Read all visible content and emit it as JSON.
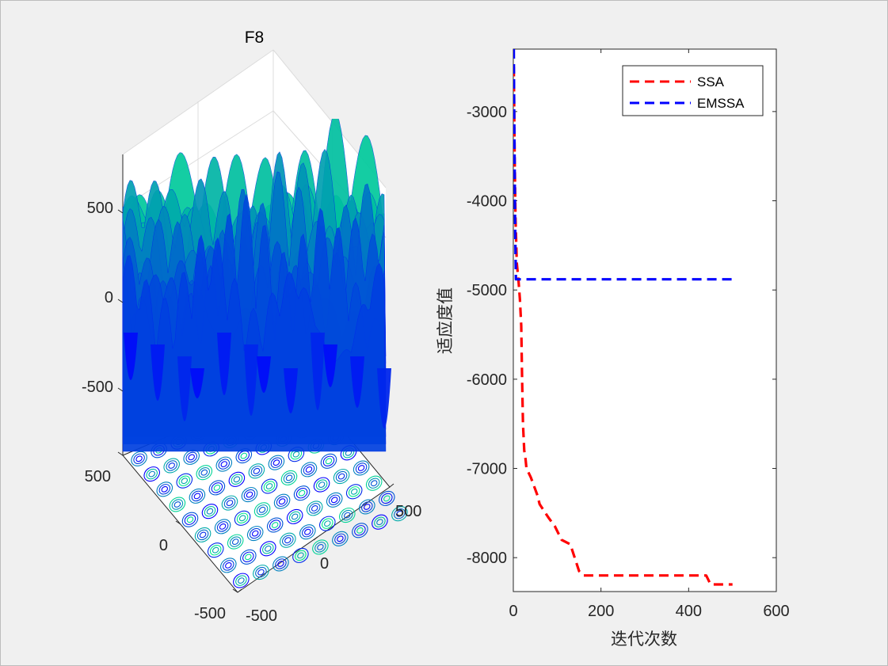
{
  "figure": {
    "background": "#f0f0f0"
  },
  "chart_data": [
    {
      "type": "surface",
      "title": "F8",
      "xlabel": "",
      "ylabel": "",
      "zlabel": "",
      "x_ticks": [
        "-500",
        "0",
        "500"
      ],
      "y_ticks": [
        "-500",
        "0",
        "500"
      ],
      "z_ticks": [
        "500",
        "0",
        "-500"
      ],
      "xlim": [
        -500,
        500
      ],
      "ylim": [
        -500,
        500
      ],
      "zlim": [
        -800,
        800
      ],
      "colormap": "winter",
      "colormap_colors": [
        "#0000ff",
        "#00ff80"
      ],
      "contour_below": true,
      "grid": true
    },
    {
      "type": "line",
      "title": "",
      "xlabel": "迭代次数",
      "ylabel": "适应度值",
      "xlim": [
        0,
        600
      ],
      "ylim": [
        -8380,
        -2300
      ],
      "x_ticks": [
        "0",
        "200",
        "400",
        "600"
      ],
      "y_ticks": [
        "-3000",
        "-4000",
        "-5000",
        "-6000",
        "-7000",
        "-8000"
      ],
      "legend_position": "top-right",
      "series": [
        {
          "name": "SSA",
          "color": "#ff0000",
          "line_style": "dashed",
          "x": [
            1,
            3,
            5,
            8,
            12,
            15,
            18,
            20,
            22,
            25,
            28,
            30,
            35,
            40,
            55,
            60,
            80,
            95,
            110,
            130,
            140,
            150,
            160,
            200,
            300,
            400,
            440,
            450,
            470,
            500
          ],
          "y": [
            -2500,
            -3500,
            -4200,
            -4700,
            -4900,
            -5100,
            -5400,
            -6000,
            -6500,
            -6800,
            -6900,
            -7000,
            -7050,
            -7100,
            -7300,
            -7400,
            -7550,
            -7650,
            -7800,
            -7850,
            -8000,
            -8150,
            -8200,
            -8200,
            -8200,
            -8200,
            -8200,
            -8300,
            -8300,
            -8300
          ]
        },
        {
          "name": "EMSSA",
          "color": "#0000ff",
          "line_style": "dashed",
          "x": [
            1,
            2,
            3,
            4,
            5,
            6,
            500
          ],
          "y": [
            -2300,
            -3000,
            -3600,
            -4200,
            -4600,
            -4880,
            -4880
          ]
        }
      ]
    }
  ]
}
